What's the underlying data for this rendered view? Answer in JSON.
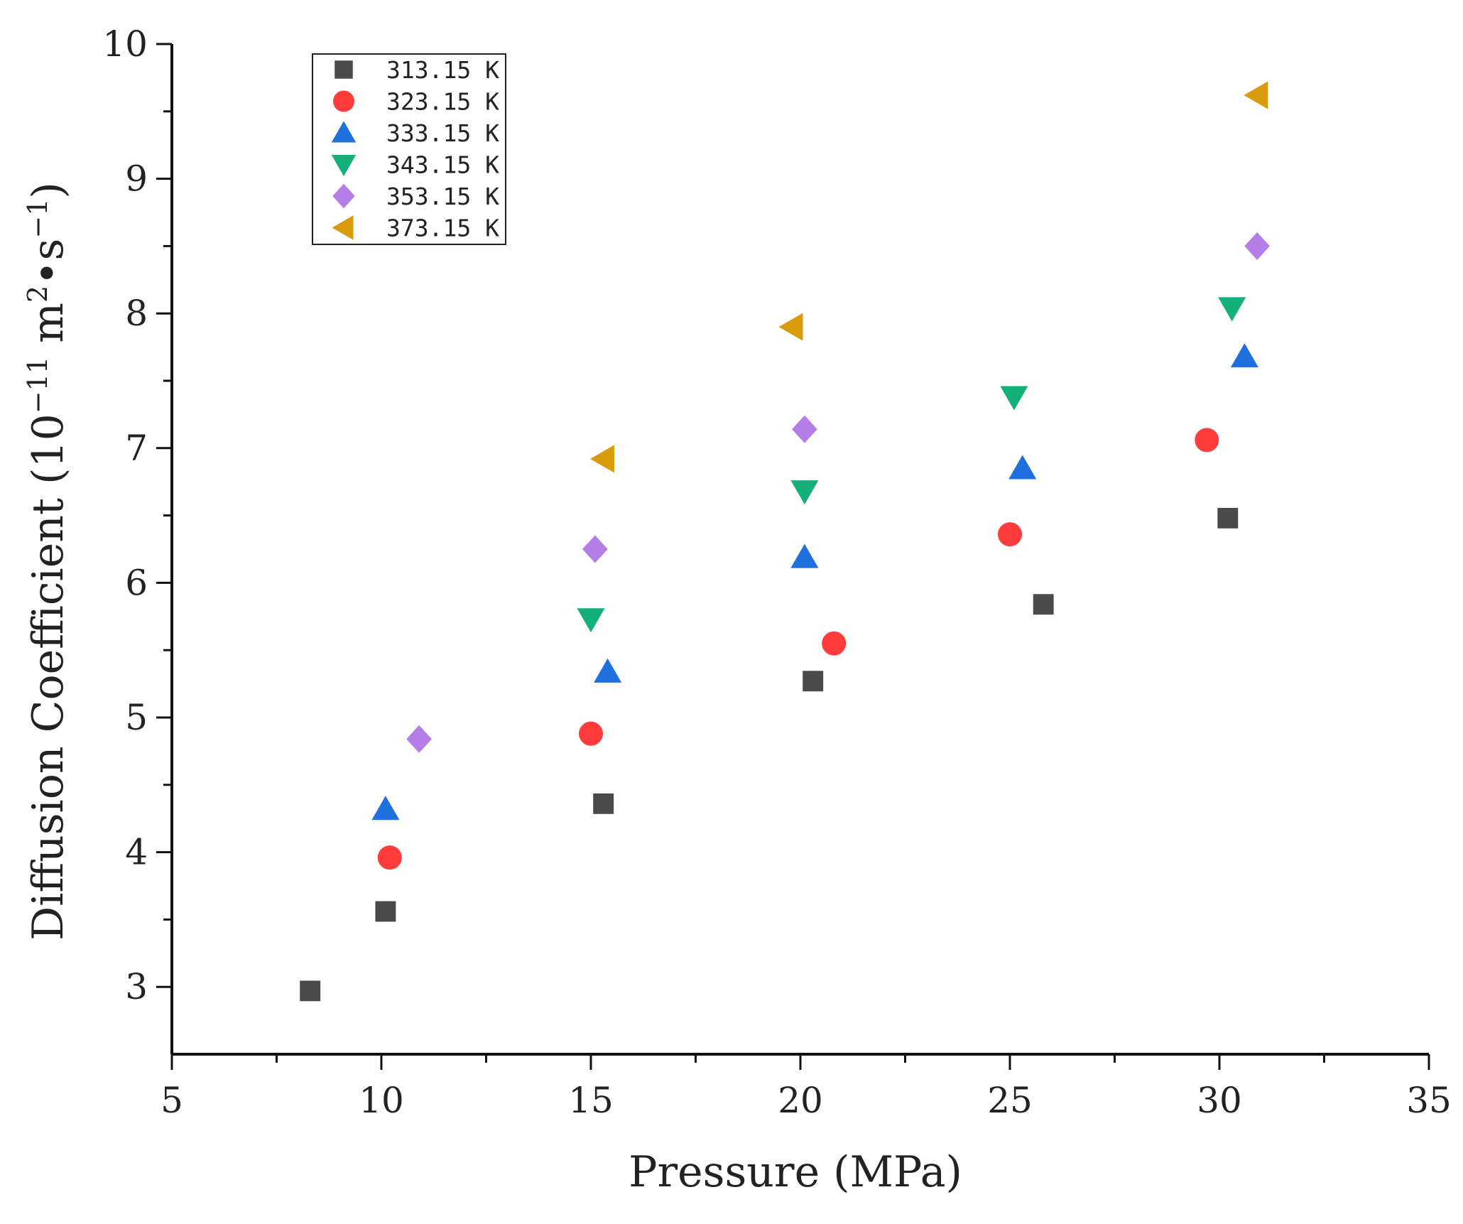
{
  "chart_data": {
    "type": "scatter",
    "title": "",
    "xlabel": "Pressure (MPa)",
    "ylabel_parts": {
      "main": "Diffusion Coefficient (10",
      "exp1": "−11",
      "mid": " m",
      "exp2": "2",
      "mid2": "•s",
      "exp3": "−1",
      "end": ")"
    },
    "xlim": [
      5,
      35
    ],
    "ylim": [
      2.5,
      10
    ],
    "x_ticks": [
      "5",
      "10",
      "15",
      "20",
      "25",
      "30",
      "35"
    ],
    "y_ticks": [
      "3",
      "4",
      "5",
      "6",
      "7",
      "8",
      "9",
      "10"
    ],
    "legend_position": "top-left",
    "series": [
      {
        "name": "313.15 K",
        "marker": "square",
        "color": "#4a4a4a",
        "points": [
          [
            8.3,
            2.97
          ],
          [
            10.1,
            3.56
          ],
          [
            15.3,
            4.36
          ],
          [
            20.3,
            5.27
          ],
          [
            25.8,
            5.84
          ],
          [
            30.2,
            6.48
          ]
        ]
      },
      {
        "name": "323.15 K",
        "marker": "circle",
        "color": "#ff3b3b",
        "points": [
          [
            10.2,
            3.96
          ],
          [
            15.0,
            4.88
          ],
          [
            20.8,
            5.55
          ],
          [
            25.0,
            6.36
          ],
          [
            29.7,
            7.06
          ]
        ]
      },
      {
        "name": "333.15 K",
        "marker": "triangle-up",
        "color": "#1f6fdc",
        "points": [
          [
            10.1,
            4.32
          ],
          [
            15.4,
            5.34
          ],
          [
            20.1,
            6.19
          ],
          [
            25.3,
            6.85
          ],
          [
            30.6,
            7.68
          ]
        ]
      },
      {
        "name": "343.15 K",
        "marker": "triangle-down",
        "color": "#14b07a",
        "points": [
          [
            15.0,
            5.73
          ],
          [
            20.1,
            6.68
          ],
          [
            25.1,
            7.38
          ],
          [
            30.3,
            8.04
          ]
        ]
      },
      {
        "name": "353.15 K",
        "marker": "diamond",
        "color": "#b57ee6",
        "points": [
          [
            10.9,
            4.84
          ],
          [
            15.1,
            6.25
          ],
          [
            20.1,
            7.14
          ],
          [
            30.9,
            8.5
          ]
        ]
      },
      {
        "name": "373.15 K",
        "marker": "triangle-left",
        "color": "#d99a0c",
        "points": [
          [
            15.3,
            6.92
          ],
          [
            19.8,
            7.9
          ],
          [
            30.9,
            9.62
          ]
        ]
      }
    ]
  }
}
